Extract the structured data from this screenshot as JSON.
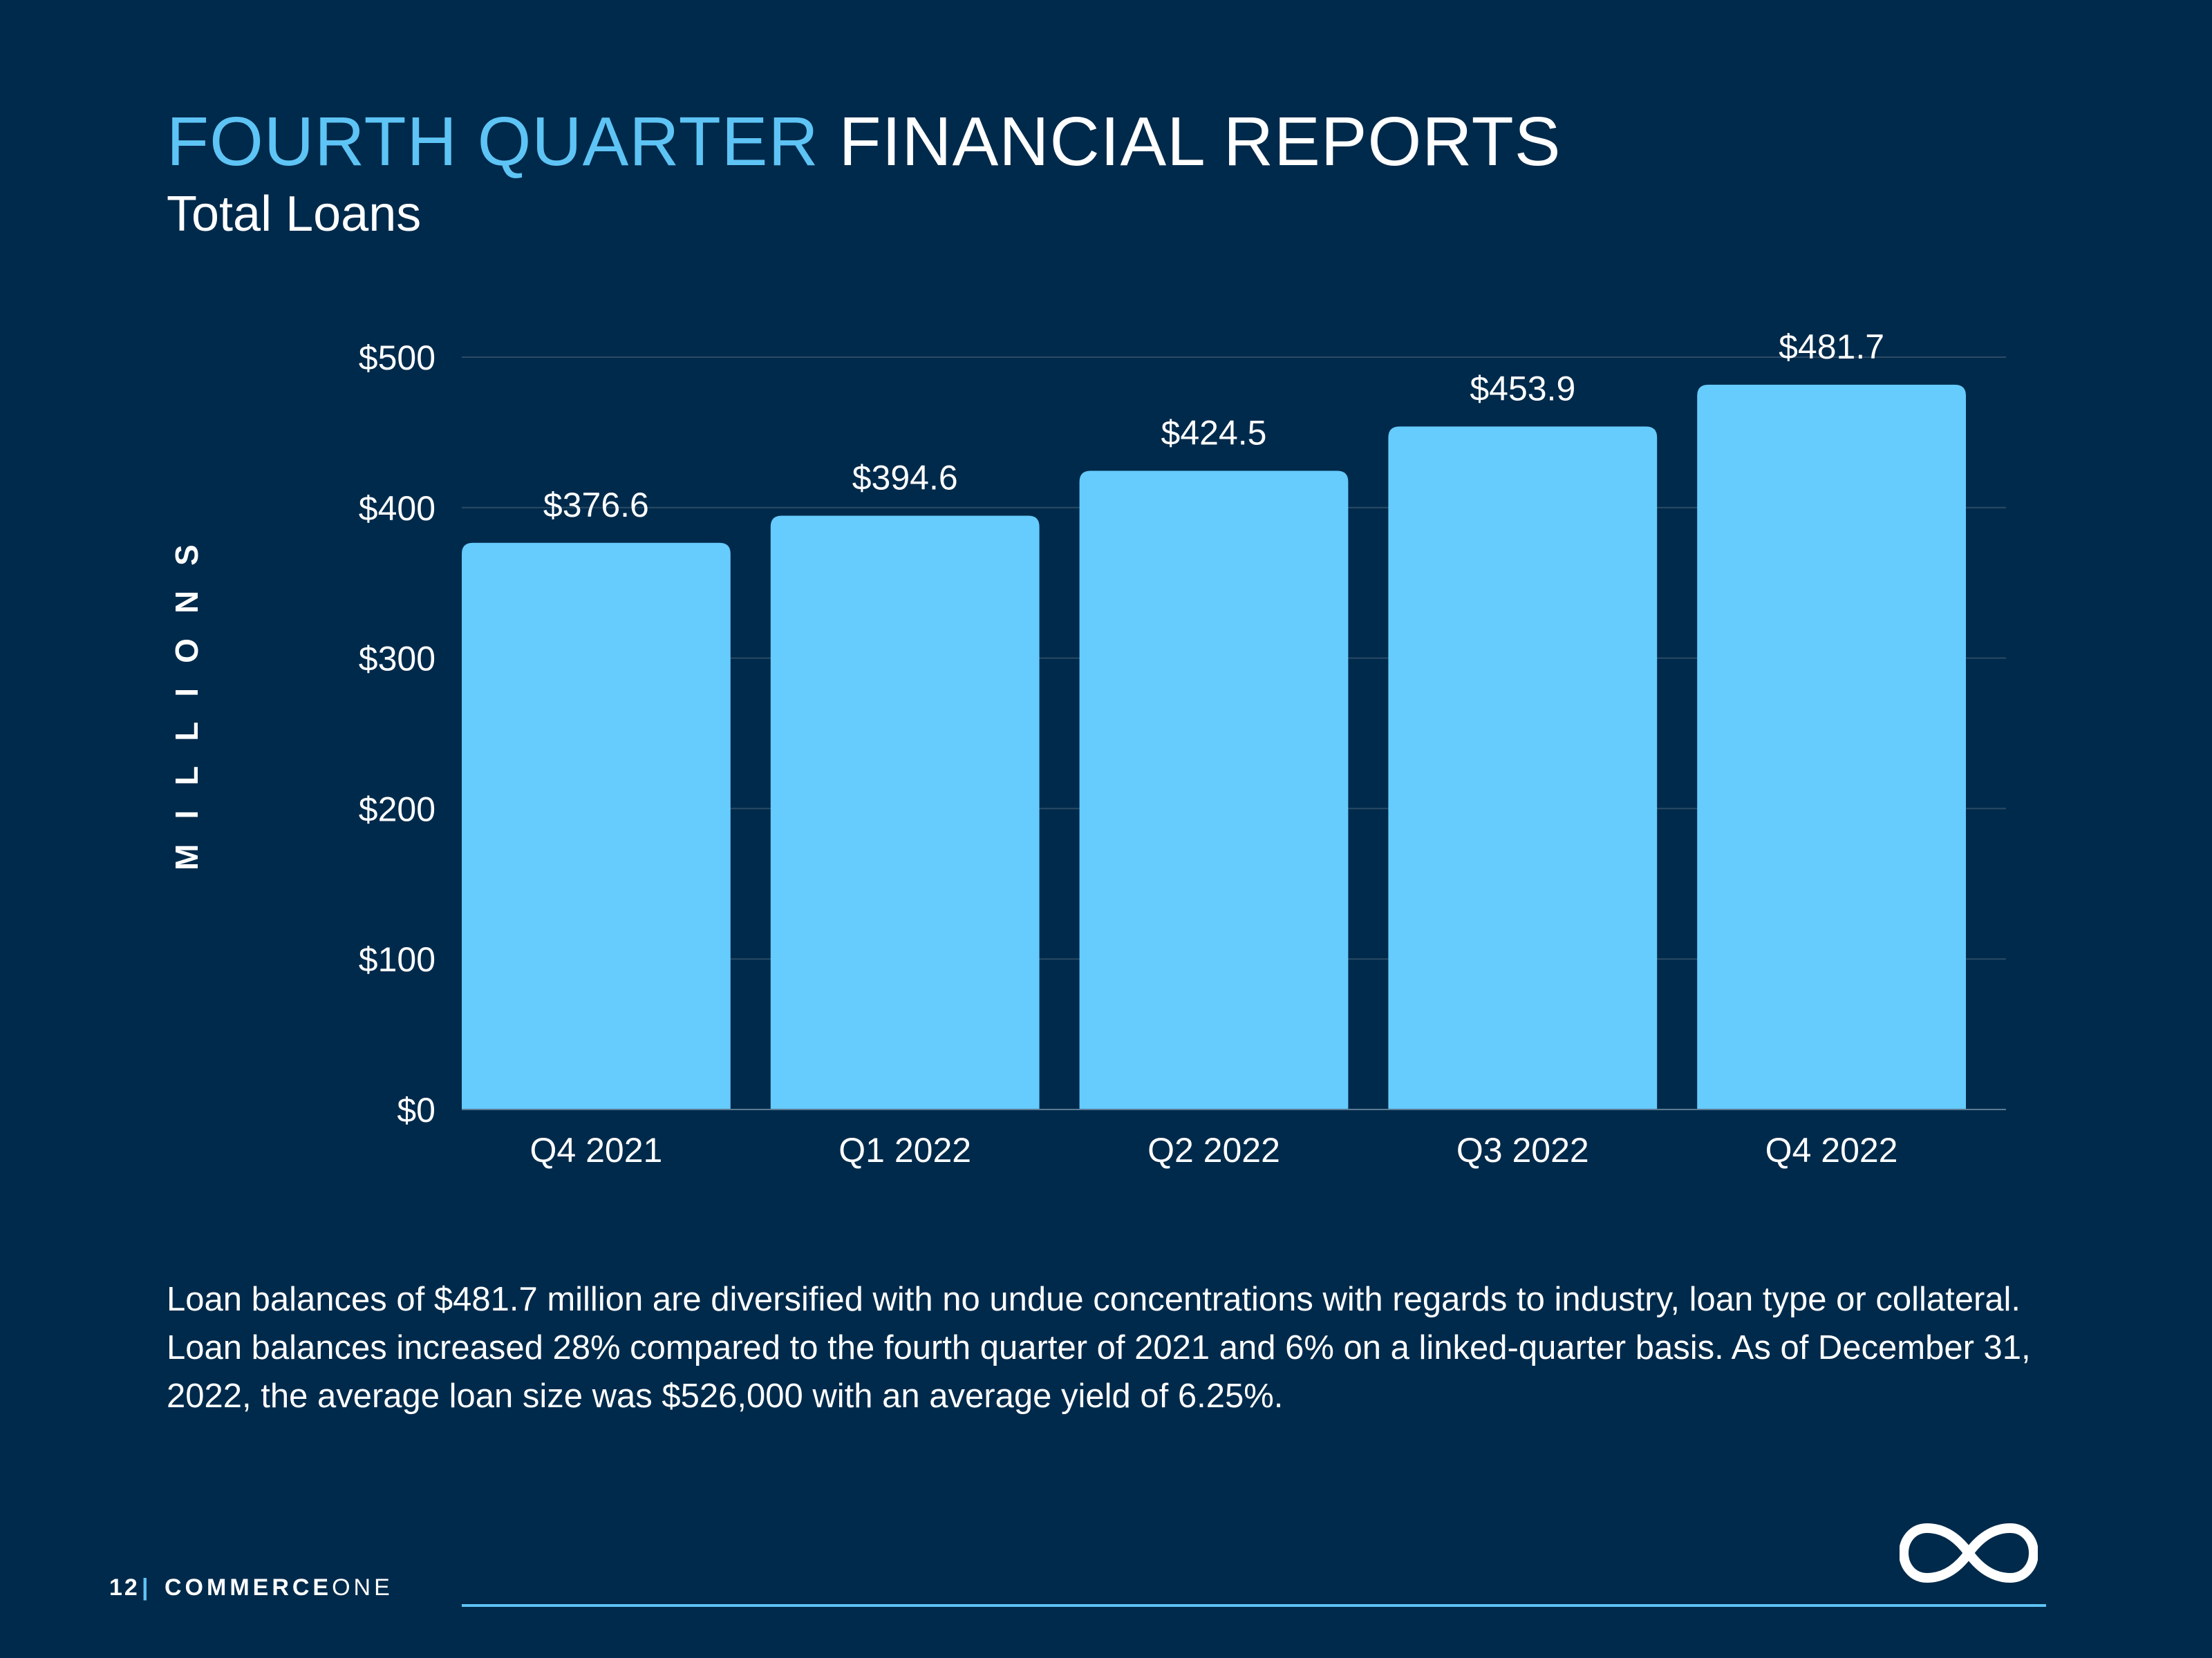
{
  "slide": {
    "title_accent": "FOURTH QUARTER",
    "title_rest": "FINANCIAL REPORTS",
    "subtitle": "Total Loans",
    "description": "Loan balances of $481.7 million are diversified with no undue concentrations with regards to industry, loan type or collateral. Loan balances increased 28% compared to the fourth quarter of 2021 and 6% on a linked-quarter basis. As of December 31, 2022, the average loan size was $526,000 with an average yield of 6.25%.",
    "page_number": "12",
    "separator": "|",
    "brand_bold": "COMMERCE",
    "brand_light": "ONE",
    "logo_icon": "infinity-icon"
  },
  "colors": {
    "background": "#002a4b",
    "accent": "#5ec4f5",
    "bar": "#66cbfd",
    "text": "#ffffff",
    "grid": "#2b4a66"
  },
  "chart_data": {
    "type": "bar",
    "title": "Total Loans",
    "ylabel": "MILLIONS",
    "xlabel": "",
    "categories": [
      "Q4 2021",
      "Q1 2022",
      "Q2 2022",
      "Q3 2022",
      "Q4 2022"
    ],
    "values": [
      376.6,
      394.6,
      424.5,
      453.9,
      481.7
    ],
    "value_labels": [
      "$376.6",
      "$394.6",
      "$424.5",
      "$453.9",
      "$481.7"
    ],
    "ylim": [
      0,
      500
    ],
    "yticks": [
      0,
      100,
      200,
      300,
      400,
      500
    ],
    "ytick_labels": [
      "$0",
      "$100",
      "$200",
      "$300",
      "$400",
      "$500"
    ],
    "grid": true,
    "legend": "none"
  }
}
